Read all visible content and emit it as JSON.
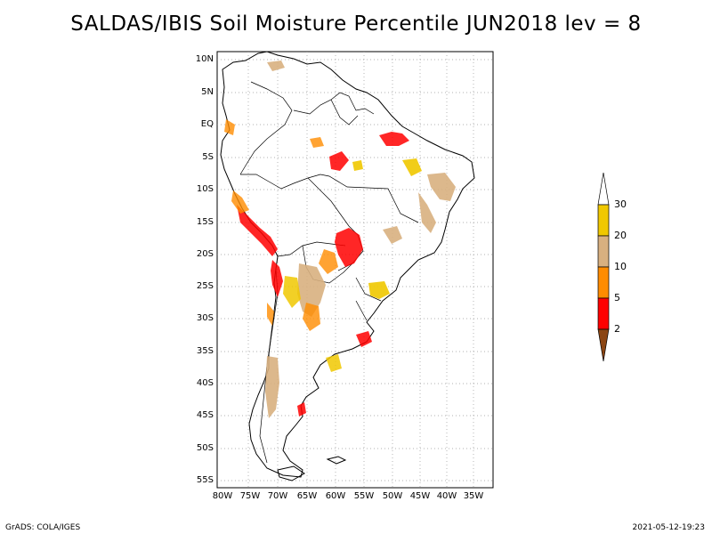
{
  "title": "SALDAS/IBIS Soil Moisture Percentile JUN2018 lev = 8",
  "y_ticks": [
    "10N",
    "5N",
    "EQ",
    "5S",
    "10S",
    "15S",
    "20S",
    "25S",
    "30S",
    "35S",
    "40S",
    "45S",
    "50S",
    "55S"
  ],
  "x_ticks": [
    "80W",
    "75W",
    "70W",
    "65W",
    "60W",
    "55W",
    "50W",
    "45W",
    "40W",
    "35W"
  ],
  "colorbar": {
    "labels": [
      "30",
      "20",
      "10",
      "5",
      "2"
    ],
    "colors": {
      "above30": "#ffffff",
      "c20_30": "#f0c800",
      "c10_20": "#d8b080",
      "c5_10": "#ff8c00",
      "c2_5": "#ff0000",
      "below2": "#8b4513"
    }
  },
  "footer": {
    "left": "GrADS: COLA/IGES",
    "right": "2021-05-12-19:23"
  }
}
